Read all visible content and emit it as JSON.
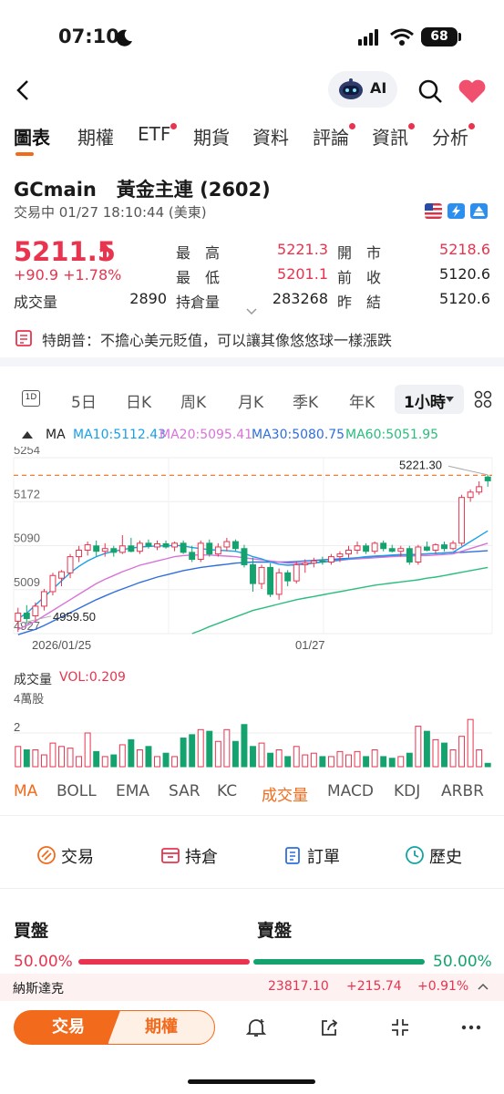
{
  "status": {
    "time": "07:10",
    "battery": "68"
  },
  "header": {
    "ai_label": "AI"
  },
  "tabs": [
    {
      "label": "圖表",
      "dot": false,
      "active": true
    },
    {
      "label": "期權",
      "dot": false
    },
    {
      "label": "ETF",
      "dot": true
    },
    {
      "label": "期貨",
      "dot": false
    },
    {
      "label": "資料",
      "dot": false
    },
    {
      "label": "評論",
      "dot": true
    },
    {
      "label": "資訊",
      "dot": true
    },
    {
      "label": "分析",
      "dot": true
    }
  ],
  "instrument": {
    "symbol": "GCmain",
    "name": "黃金主連 (2602)",
    "status_line": "交易中 01/27 18:10:44 (美東)",
    "price": "5211.5",
    "change": "+90.9",
    "change_pct": "+1.78%",
    "volume_label": "成交量",
    "volume": "2890",
    "high_label": "最　高",
    "high": "5221.3",
    "low_label": "最　低",
    "low": "5201.1",
    "oi_label": "持倉量",
    "oi": "283268",
    "open_label": "開　市",
    "open": "5218.6",
    "prev_close_label": "前　收",
    "prev_close": "5120.6",
    "prev_settle_label": "昨　結",
    "prev_settle": "5120.6"
  },
  "news": {
    "text": "特朗普：不擔心美元貶值，可以讓其像悠悠球一樣漲跌"
  },
  "periods": [
    "5日",
    "日K",
    "周K",
    "月K",
    "季K",
    "年K"
  ],
  "period_active": "1小時",
  "period_first_icon": "1D",
  "ma_legend": {
    "label": "MA",
    "ma10": "MA10:5112.43",
    "ma20": "MA20:5095.41",
    "ma30": "MA30:5080.75",
    "ma60": "MA60:5051.95"
  },
  "colors": {
    "up": "#e8344e",
    "down": "#14a36e",
    "accent": "#f26a1b",
    "ma10": "#19a0e8",
    "ma20": "#d873d8",
    "ma30": "#2f6fdc",
    "ma60": "#2bbd7e"
  },
  "chart_data": {
    "type": "candlestick",
    "y_ticks": [
      "5254",
      "5172",
      "5090",
      "5009",
      "4927"
    ],
    "ylim": [
      4927,
      5254
    ],
    "x_labels": [
      "2026/01/25",
      "01/27"
    ],
    "last_price_label": "5221.30",
    "min_label": "4959.50",
    "candles": [
      {
        "o": 4950,
        "h": 4975,
        "l": 4930,
        "c": 4965
      },
      {
        "o": 4965,
        "h": 4980,
        "l": 4945,
        "c": 4955
      },
      {
        "o": 4960,
        "h": 4985,
        "l": 4950,
        "c": 4978
      },
      {
        "o": 4978,
        "h": 5010,
        "l": 4970,
        "c": 5005
      },
      {
        "o": 5005,
        "h": 5040,
        "l": 4998,
        "c": 5035
      },
      {
        "o": 5030,
        "h": 5045,
        "l": 5015,
        "c": 5042
      },
      {
        "o": 5040,
        "h": 5075,
        "l": 5030,
        "c": 5070
      },
      {
        "o": 5070,
        "h": 5090,
        "l": 5060,
        "c": 5082
      },
      {
        "o": 5082,
        "h": 5098,
        "l": 5072,
        "c": 5092
      },
      {
        "o": 5090,
        "h": 5100,
        "l": 5070,
        "c": 5080
      },
      {
        "o": 5080,
        "h": 5095,
        "l": 5070,
        "c": 5085
      },
      {
        "o": 5085,
        "h": 5090,
        "l": 5070,
        "c": 5078
      },
      {
        "o": 5078,
        "h": 5110,
        "l": 5075,
        "c": 5090
      },
      {
        "o": 5090,
        "h": 5105,
        "l": 5078,
        "c": 5080
      },
      {
        "o": 5080,
        "h": 5100,
        "l": 5075,
        "c": 5095
      },
      {
        "o": 5095,
        "h": 5102,
        "l": 5085,
        "c": 5090
      },
      {
        "o": 5088,
        "h": 5100,
        "l": 5082,
        "c": 5094
      },
      {
        "o": 5094,
        "h": 5100,
        "l": 5085,
        "c": 5088
      },
      {
        "o": 5088,
        "h": 5098,
        "l": 5080,
        "c": 5095
      },
      {
        "o": 5095,
        "h": 5100,
        "l": 5075,
        "c": 5078
      },
      {
        "o": 5078,
        "h": 5090,
        "l": 5060,
        "c": 5065
      },
      {
        "o": 5065,
        "h": 5100,
        "l": 5060,
        "c": 5095
      },
      {
        "o": 5095,
        "h": 5102,
        "l": 5070,
        "c": 5075
      },
      {
        "o": 5075,
        "h": 5095,
        "l": 5070,
        "c": 5088
      },
      {
        "o": 5088,
        "h": 5105,
        "l": 5080,
        "c": 5098
      },
      {
        "o": 5098,
        "h": 5102,
        "l": 5080,
        "c": 5085
      },
      {
        "o": 5085,
        "h": 5092,
        "l": 5050,
        "c": 5055
      },
      {
        "o": 5055,
        "h": 5068,
        "l": 5005,
        "c": 5020
      },
      {
        "o": 5020,
        "h": 5055,
        "l": 5010,
        "c": 5050
      },
      {
        "o": 5050,
        "h": 5058,
        "l": 4995,
        "c": 5000
      },
      {
        "o": 5000,
        "h": 5048,
        "l": 4990,
        "c": 5040
      },
      {
        "o": 5040,
        "h": 5045,
        "l": 5015,
        "c": 5025
      },
      {
        "o": 5025,
        "h": 5060,
        "l": 5020,
        "c": 5055
      },
      {
        "o": 5055,
        "h": 5065,
        "l": 5040,
        "c": 5058
      },
      {
        "o": 5058,
        "h": 5068,
        "l": 5050,
        "c": 5062
      },
      {
        "o": 5062,
        "h": 5070,
        "l": 5055,
        "c": 5060
      },
      {
        "o": 5060,
        "h": 5075,
        "l": 5055,
        "c": 5070
      },
      {
        "o": 5070,
        "h": 5080,
        "l": 5060,
        "c": 5075
      },
      {
        "o": 5075,
        "h": 5090,
        "l": 5068,
        "c": 5082
      },
      {
        "o": 5082,
        "h": 5098,
        "l": 5075,
        "c": 5090
      },
      {
        "o": 5090,
        "h": 5095,
        "l": 5075,
        "c": 5080
      },
      {
        "o": 5080,
        "h": 5098,
        "l": 5075,
        "c": 5095
      },
      {
        "o": 5095,
        "h": 5100,
        "l": 5080,
        "c": 5085
      },
      {
        "o": 5085,
        "h": 5092,
        "l": 5078,
        "c": 5080
      },
      {
        "o": 5080,
        "h": 5090,
        "l": 5070,
        "c": 5085
      },
      {
        "o": 5085,
        "h": 5090,
        "l": 5055,
        "c": 5060
      },
      {
        "o": 5060,
        "h": 5092,
        "l": 5055,
        "c": 5088
      },
      {
        "o": 5088,
        "h": 5098,
        "l": 5080,
        "c": 5082
      },
      {
        "o": 5082,
        "h": 5095,
        "l": 5075,
        "c": 5092
      },
      {
        "o": 5092,
        "h": 5098,
        "l": 5080,
        "c": 5085
      },
      {
        "o": 5085,
        "h": 5100,
        "l": 5082,
        "c": 5095
      },
      {
        "o": 5095,
        "h": 5185,
        "l": 5090,
        "c": 5180
      },
      {
        "o": 5180,
        "h": 5195,
        "l": 5172,
        "c": 5190
      },
      {
        "o": 5190,
        "h": 5210,
        "l": 5185,
        "c": 5200
      },
      {
        "o": 5218,
        "h": 5222,
        "l": 5200,
        "c": 5211
      }
    ],
    "ma10": [
      4955,
      4965,
      4980,
      4995,
      5010,
      5025,
      5040,
      5052,
      5062,
      5070,
      5076,
      5080,
      5083,
      5086,
      5088,
      5089,
      5090,
      5090,
      5091,
      5090,
      5087,
      5085,
      5083,
      5082,
      5081,
      5080,
      5076,
      5070,
      5066,
      5060,
      5056,
      5054,
      5055,
      5056,
      5058,
      5060,
      5062,
      5064,
      5066,
      5068,
      5070,
      5071,
      5072,
      5073,
      5074,
      5073,
      5074,
      5075,
      5076,
      5077,
      5078,
      5088,
      5098,
      5108,
      5118
    ],
    "ma20": [
      4935,
      4942,
      4950,
      4960,
      4970,
      4980,
      4990,
      5000,
      5010,
      5020,
      5028,
      5035,
      5042,
      5048,
      5054,
      5058,
      5062,
      5066,
      5070,
      5072,
      5073,
      5073,
      5073,
      5072,
      5071,
      5070,
      5068,
      5066,
      5064,
      5062,
      5060,
      5058,
      5058,
      5058,
      5059,
      5060,
      5061,
      5063,
      5065,
      5066,
      5067,
      5068,
      5069,
      5070,
      5071,
      5071,
      5072,
      5072,
      5073,
      5074,
      5075,
      5080,
      5085,
      5090,
      5095
    ],
    "ma30": [
      4925,
      4930,
      4935,
      4942,
      4950,
      4958,
      4966,
      4974,
      4982,
      4990,
      4997,
      5004,
      5010,
      5016,
      5022,
      5027,
      5032,
      5036,
      5040,
      5044,
      5047,
      5050,
      5052,
      5054,
      5056,
      5058,
      5059,
      5060,
      5060,
      5060,
      5060,
      5060,
      5061,
      5062,
      5063,
      5064,
      5065,
      5066,
      5067,
      5068,
      5069,
      5070,
      5071,
      5072,
      5073,
      5074,
      5074,
      5075,
      5076,
      5077,
      5078,
      5078,
      5079,
      5080,
      5081
    ],
    "ma60": [
      null,
      null,
      null,
      null,
      null,
      null,
      null,
      null,
      null,
      null,
      null,
      null,
      null,
      null,
      null,
      null,
      null,
      null,
      null,
      null,
      4927,
      4933,
      4940,
      4946,
      4952,
      4958,
      4964,
      4970,
      4974,
      4978,
      4982,
      4986,
      4990,
      4993,
      4996,
      4999,
      5002,
      5005,
      5008,
      5011,
      5014,
      5017,
      5019,
      5021,
      5023,
      5025,
      5027,
      5030,
      5032,
      5035,
      5038,
      5041,
      5044,
      5047,
      5050
    ],
    "volume_label": "成交量",
    "volume_tag": "VOL:0.209",
    "volume_unit": "4萬股",
    "volume_tick": "2",
    "volumes": [
      1.2,
      1.0,
      1.0,
      0.7,
      1.4,
      1.2,
      1.1,
      0.6,
      2.0,
      0.9,
      0.6,
      0.7,
      1.3,
      1.6,
      1.0,
      1.2,
      0.6,
      0.8,
      0.6,
      1.7,
      1.9,
      2.2,
      2.1,
      1.5,
      2.2,
      1.5,
      2.5,
      1.2,
      1.4,
      0.8,
      1.0,
      0.6,
      1.2,
      0.7,
      0.8,
      0.6,
      0.6,
      0.9,
      0.7,
      0.9,
      0.6,
      1.0,
      0.6,
      0.5,
      0.6,
      0.8,
      2.4,
      2.1,
      1.6,
      1.4,
      1.0,
      1.8,
      2.8,
      1.0,
      0.2
    ]
  },
  "indicators": {
    "items": [
      "MA",
      "BOLL",
      "EMA",
      "SAR",
      "KC",
      "成交量",
      "MACD",
      "KDJ",
      "ARBR"
    ],
    "active": [
      "MA",
      "成交量"
    ]
  },
  "actions": [
    {
      "label": "交易",
      "icon": "trade-icon",
      "color": "#f26a1b"
    },
    {
      "label": "持倉",
      "icon": "position-icon",
      "color": "#e8344e"
    },
    {
      "label": "訂單",
      "icon": "order-icon",
      "color": "#2f6fdc"
    },
    {
      "label": "歷史",
      "icon": "history-icon",
      "color": "#14a3a3"
    }
  ],
  "order_book": {
    "buy_label": "買盤",
    "sell_label": "賣盤",
    "buy_pct": "50.00%",
    "sell_pct": "50.00%",
    "buy_ratio": 0.5
  },
  "ticker": {
    "name": "納斯達克",
    "value": "23817.10",
    "change": "+215.74",
    "change_pct": "+0.91%"
  },
  "bottom": {
    "trade_label": "交易",
    "options_label": "期權"
  }
}
